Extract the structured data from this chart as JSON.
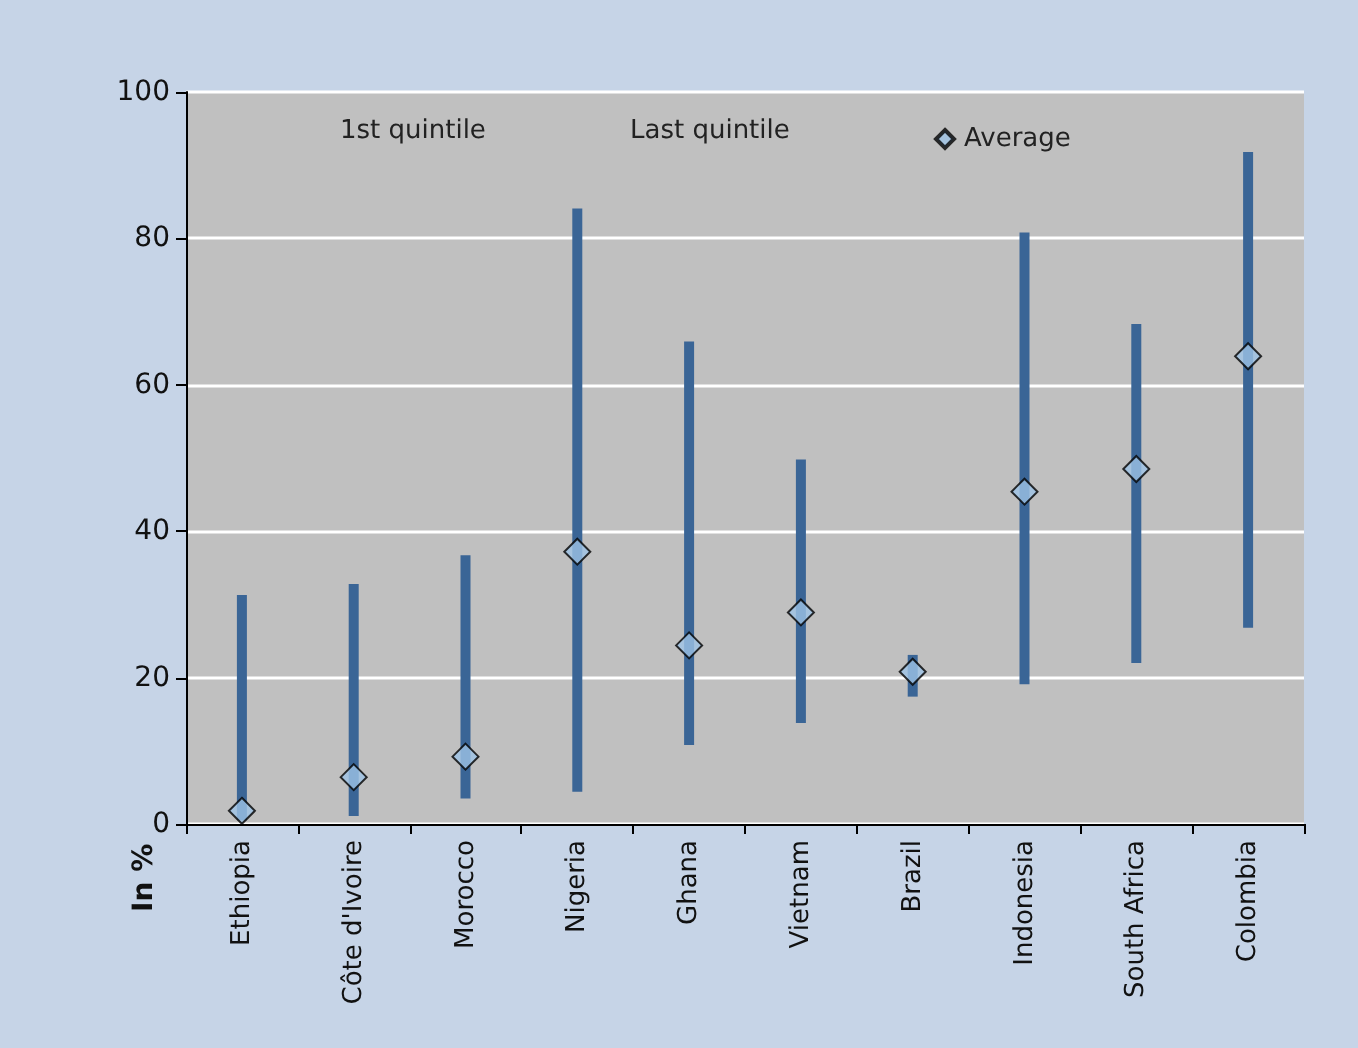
{
  "chart_data": {
    "type": "scatter",
    "categories": [
      "Ethiopia",
      "Côte d'Ivoire",
      "Morocco",
      "Nigeria",
      "Ghana",
      "Vietnam",
      "Brazil",
      "Indonesia",
      "South Africa",
      "Colombia"
    ],
    "ylabel": "In %",
    "annotations": [
      "1st quintile",
      "Last quintile"
    ],
    "series": [
      {
        "name": "Average",
        "marker": "diamond",
        "color": "#9dc3e6",
        "values": [
          1.8,
          6.4,
          9.2,
          37.2,
          24.4,
          28.9,
          20.8,
          45.4,
          48.5,
          63.9
        ],
        "errors": [
          [
            0.5,
            31.3
          ],
          [
            1.1,
            32.8
          ],
          [
            3.5,
            36.7
          ],
          [
            4.4,
            84.1
          ],
          [
            10.8,
            65.9
          ],
          [
            13.8,
            49.8
          ],
          [
            17.4,
            23.1
          ],
          [
            19.1,
            80.8
          ],
          [
            22.0,
            68.3
          ],
          [
            26.8,
            91.8
          ]
        ]
      }
    ],
    "ylim": [
      0,
      100
    ],
    "yticks": [
      0,
      20,
      40,
      60,
      80,
      100
    ],
    "grid": "y",
    "legend": "top"
  }
}
